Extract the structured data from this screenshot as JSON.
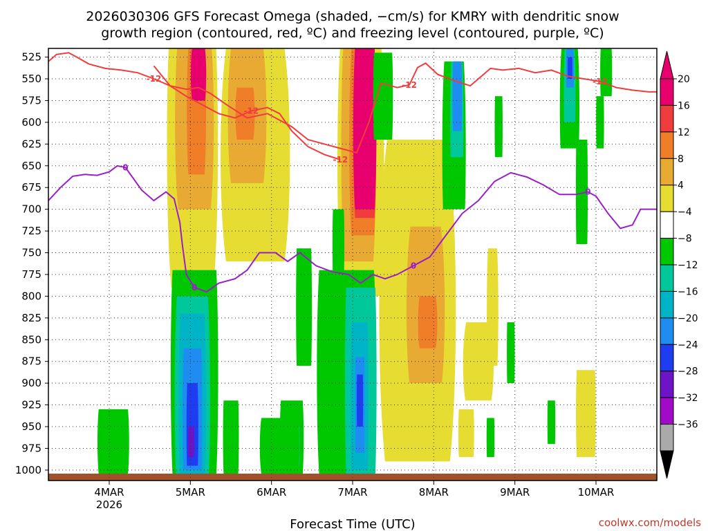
{
  "chart_data": {
    "type": "heatmap",
    "title_line1": "2026030306 GFS Forecast Omega (shaded, −cm/s) for KMRY with dendritic snow",
    "title_line2": "growth region (contoured, red, ºC) and freezing level (contoured, purple, ºC)",
    "xlabel": "Forecast Time (UTC)",
    "credit": "coolwx.com/models",
    "x_axis": {
      "unit": "days since 2026-03-03 06Z",
      "range": [
        0,
        7.5
      ],
      "ticks": [
        {
          "pos": 0.75,
          "label": "4MAR",
          "sublabel": "2026"
        },
        {
          "pos": 1.75,
          "label": "5MAR"
        },
        {
          "pos": 2.75,
          "label": "6MAR"
        },
        {
          "pos": 3.75,
          "label": "7MAR"
        },
        {
          "pos": 4.75,
          "label": "8MAR"
        },
        {
          "pos": 5.75,
          "label": "9MAR"
        },
        {
          "pos": 6.75,
          "label": "10MAR"
        }
      ]
    },
    "y_axis": {
      "unit": "hPa",
      "range": [
        515,
        1012
      ],
      "ticks": [
        525,
        550,
        575,
        600,
        625,
        650,
        675,
        700,
        725,
        750,
        775,
        800,
        825,
        850,
        875,
        900,
        925,
        950,
        975,
        1000
      ]
    },
    "colorbar": {
      "labels": [
        "20",
        "16",
        "12",
        "8",
        "4",
        "−4",
        "−8",
        "−12",
        "−16",
        "−20",
        "−24",
        "−28",
        "−32",
        "−36"
      ],
      "bins": [
        {
          "color": "#e8006f"
        },
        {
          "color": "#f03c3c"
        },
        {
          "color": "#f07e28"
        },
        {
          "color": "#e8aa32"
        },
        {
          "color": "#e6dc32"
        },
        {
          "color": "#ffffff"
        },
        {
          "color": "#00c800"
        },
        {
          "color": "#00c89b"
        },
        {
          "color": "#00b4c8"
        },
        {
          "color": "#1e8cf0"
        },
        {
          "color": "#1e3cf0"
        },
        {
          "color": "#6e14c8"
        },
        {
          "color": "#a00ac8"
        },
        {
          "color": "#aaaaaa"
        }
      ],
      "top_arrow_color": "#e8006f",
      "bottom_arrow_color": "#000000"
    },
    "freezing_level": {
      "color": "#9a1ec8",
      "label": "0",
      "points": [
        [
          0,
          690
        ],
        [
          0.15,
          675
        ],
        [
          0.3,
          662
        ],
        [
          0.45,
          660
        ],
        [
          0.6,
          661
        ],
        [
          0.75,
          657
        ],
        [
          0.85,
          650
        ],
        [
          0.95,
          652
        ],
        [
          1.05,
          665
        ],
        [
          1.15,
          678
        ],
        [
          1.3,
          690
        ],
        [
          1.45,
          680
        ],
        [
          1.55,
          688
        ],
        [
          1.62,
          715
        ],
        [
          1.65,
          740
        ],
        [
          1.7,
          775
        ],
        [
          1.8,
          790
        ],
        [
          1.95,
          795
        ],
        [
          2.1,
          785
        ],
        [
          2.3,
          780
        ],
        [
          2.45,
          770
        ],
        [
          2.6,
          750
        ],
        [
          2.8,
          750
        ],
        [
          2.95,
          760
        ],
        [
          3.1,
          750
        ],
        [
          3.3,
          765
        ],
        [
          3.5,
          772
        ],
        [
          3.7,
          775
        ],
        [
          3.85,
          785
        ],
        [
          4.0,
          775
        ],
        [
          4.15,
          780
        ],
        [
          4.3,
          775
        ],
        [
          4.5,
          765
        ],
        [
          4.7,
          755
        ],
        [
          4.9,
          730
        ],
        [
          5.1,
          705
        ],
        [
          5.3,
          690
        ],
        [
          5.5,
          668
        ],
        [
          5.7,
          658
        ],
        [
          5.9,
          663
        ],
        [
          6.1,
          672
        ],
        [
          6.3,
          683
        ],
        [
          6.5,
          683
        ],
        [
          6.65,
          680
        ],
        [
          6.75,
          685
        ],
        [
          6.9,
          705
        ],
        [
          7.05,
          722
        ],
        [
          7.2,
          718
        ],
        [
          7.3,
          700
        ],
        [
          7.5,
          700
        ]
      ]
    },
    "dgz_top": {
      "color": "#f03c3c",
      "label": "-12",
      "points": [
        [
          0,
          530
        ],
        [
          0.1,
          522
        ],
        [
          0.25,
          520
        ],
        [
          0.35,
          525
        ],
        [
          0.5,
          533
        ],
        [
          0.7,
          538
        ],
        [
          0.9,
          540
        ],
        [
          1.1,
          543
        ],
        [
          1.3,
          550
        ],
        [
          1.5,
          558
        ],
        [
          1.7,
          562
        ],
        [
          1.85,
          560
        ],
        [
          2.0,
          567
        ],
        [
          2.2,
          580
        ],
        [
          2.45,
          595
        ],
        [
          2.7,
          590
        ],
        [
          3.0,
          605
        ],
        [
          3.2,
          620
        ],
        [
          3.4,
          625
        ],
        [
          3.6,
          630
        ],
        [
          3.8,
          635
        ],
        [
          3.95,
          600
        ],
        [
          4.1,
          555
        ],
        [
          4.3,
          560
        ],
        [
          4.45,
          557
        ],
        [
          4.55,
          537
        ],
        [
          4.65,
          532
        ],
        [
          4.8,
          545
        ],
        [
          5.0,
          552
        ],
        [
          5.2,
          558
        ],
        [
          5.45,
          538
        ],
        [
          5.6,
          540
        ],
        [
          5.8,
          538
        ],
        [
          6.0,
          543
        ],
        [
          6.2,
          540
        ],
        [
          6.4,
          547
        ],
        [
          6.6,
          550
        ],
        [
          6.8,
          553
        ],
        [
          7.0,
          560
        ],
        [
          7.2,
          563
        ],
        [
          7.4,
          565
        ],
        [
          7.5,
          565
        ]
      ]
    },
    "dgz_bottom": {
      "color": "#f03c3c",
      "label": "-12",
      "points": [
        [
          1.3,
          535
        ],
        [
          1.5,
          558
        ],
        [
          1.7,
          570
        ],
        [
          1.9,
          580
        ],
        [
          2.1,
          590
        ],
        [
          2.3,
          595
        ],
        [
          2.5,
          587
        ],
        [
          2.7,
          583
        ],
        [
          2.85,
          590
        ],
        [
          3.0,
          610
        ],
        [
          3.2,
          628
        ],
        [
          3.4,
          637
        ],
        [
          3.6,
          643
        ]
      ]
    },
    "regions": [
      {
        "x": [
          1.45,
          2.1
        ],
        "p": [
          515,
          790
        ],
        "c": 4,
        "w": [
          0.9,
          0.8
        ]
      },
      {
        "x": [
          1.55,
          2.05
        ],
        "p": [
          515,
          700
        ],
        "c": 3,
        "w": [
          0.85,
          0.8
        ]
      },
      {
        "x": [
          1.7,
          1.95
        ],
        "p": [
          515,
          660
        ],
        "c": 2,
        "w": [
          0.8,
          0.8
        ]
      },
      {
        "x": [
          1.75,
          1.95
        ],
        "p": [
          515,
          575
        ],
        "c": 0,
        "w": [
          0.8,
          0.8
        ]
      },
      {
        "x": [
          2.1,
          3.0
        ],
        "p": [
          515,
          760
        ],
        "c": 4,
        "w": [
          0.8,
          0.8
        ]
      },
      {
        "x": [
          2.2,
          2.7
        ],
        "p": [
          515,
          670
        ],
        "c": 3,
        "w": [
          0.8,
          0.8
        ]
      },
      {
        "x": [
          2.3,
          2.55
        ],
        "p": [
          560,
          620
        ],
        "c": 2,
        "w": [
          0.8,
          0.8
        ]
      },
      {
        "x": [
          3.55,
          4.15
        ],
        "p": [
          515,
          800
        ],
        "c": 4,
        "w": [
          0.85,
          0.8
        ]
      },
      {
        "x": [
          3.6,
          4.05
        ],
        "p": [
          515,
          760
        ],
        "c": 3,
        "w": [
          0.85,
          0.8
        ]
      },
      {
        "x": [
          3.7,
          4.05
        ],
        "p": [
          515,
          730
        ],
        "c": 2,
        "w": [
          0.8,
          0.8
        ]
      },
      {
        "x": [
          3.75,
          4.05
        ],
        "p": [
          515,
          710
        ],
        "c": 1,
        "w": [
          0.8,
          0.8
        ]
      },
      {
        "x": [
          3.75,
          4.05
        ],
        "p": [
          515,
          700
        ],
        "c": 0,
        "w": [
          0.8,
          0.8
        ]
      },
      {
        "x": [
          3.8,
          4.0
        ],
        "p": [
          525,
          690
        ],
        "c": 0,
        "w": [
          0.9,
          0.9
        ]
      },
      {
        "x": [
          4.05,
          5.05
        ],
        "p": [
          620,
          990
        ],
        "c": 4,
        "w": [
          0.75,
          0.8
        ]
      },
      {
        "x": [
          4.4,
          4.9
        ],
        "p": [
          720,
          900
        ],
        "c": 3,
        "w": [
          0.75,
          0.8
        ]
      },
      {
        "x": [
          4.55,
          4.8
        ],
        "p": [
          800,
          860
        ],
        "c": 2,
        "w": [
          0.8,
          0.8
        ]
      },
      {
        "x": [
          5.1,
          5.5
        ],
        "p": [
          830,
          920
        ],
        "c": 4,
        "w": [
          0.75,
          0.8
        ]
      },
      {
        "x": [
          5.4,
          5.55
        ],
        "p": [
          745,
          880
        ],
        "c": 4,
        "w": [
          0.75,
          0.8
        ]
      },
      {
        "x": [
          6.5,
          6.75
        ],
        "p": [
          885,
          985
        ],
        "c": 4,
        "w": [
          0.9,
          0.9
        ]
      },
      {
        "x": [
          5.05,
          5.25
        ],
        "p": [
          930,
          985
        ],
        "c": 4,
        "w": [
          0.9,
          0.9
        ]
      },
      {
        "x": [
          1.5,
          2.1
        ],
        "p": [
          770,
          1005
        ],
        "c": 6,
        "w": [
          0.9,
          0.9
        ]
      },
      {
        "x": [
          1.55,
          2.0
        ],
        "p": [
          800,
          1005
        ],
        "c": 7,
        "w": [
          0.85,
          0.9
        ]
      },
      {
        "x": [
          1.6,
          1.95
        ],
        "p": [
          820,
          1005
        ],
        "c": 8,
        "w": [
          0.85,
          0.9
        ]
      },
      {
        "x": [
          1.65,
          1.9
        ],
        "p": [
          860,
          1000
        ],
        "c": 9,
        "w": [
          0.85,
          0.9
        ]
      },
      {
        "x": [
          1.7,
          1.85
        ],
        "p": [
          900,
          995
        ],
        "c": 10,
        "w": [
          0.85,
          0.9
        ]
      },
      {
        "x": [
          1.72,
          1.8
        ],
        "p": [
          950,
          985
        ],
        "c": 11,
        "w": [
          0.85,
          0.9
        ]
      },
      {
        "x": [
          3.3,
          4.05
        ],
        "p": [
          770,
          1005
        ],
        "c": 6,
        "w": [
          0.9,
          0.9
        ]
      },
      {
        "x": [
          3.65,
          4.05
        ],
        "p": [
          790,
          1005
        ],
        "c": 7,
        "w": [
          0.9,
          0.9
        ]
      },
      {
        "x": [
          3.72,
          3.95
        ],
        "p": [
          830,
          1000
        ],
        "c": 8,
        "w": [
          0.85,
          0.9
        ]
      },
      {
        "x": [
          3.78,
          3.9
        ],
        "p": [
          870,
          980
        ],
        "c": 9,
        "w": [
          0.9,
          0.9
        ]
      },
      {
        "x": [
          3.8,
          3.88
        ],
        "p": [
          890,
          950
        ],
        "c": 10,
        "w": [
          0.9,
          0.9
        ]
      },
      {
        "x": [
          2.15,
          2.35
        ],
        "p": [
          920,
          1005
        ],
        "c": 6,
        "w": [
          0.9,
          0.9
        ]
      },
      {
        "x": [
          2.85,
          3.15
        ],
        "p": [
          920,
          1005
        ],
        "c": 6,
        "w": [
          0.9,
          0.9
        ]
      },
      {
        "x": [
          2.95,
          3.1
        ],
        "p": [
          950,
          995
        ],
        "c": 7,
        "w": [
          0.9,
          0.9
        ]
      },
      {
        "x": [
          0.6,
          1.0
        ],
        "p": [
          930,
          1005
        ],
        "c": 6,
        "w": [
          0.9,
          0.9
        ]
      },
      {
        "x": [
          2.6,
          3.1
        ],
        "p": [
          940,
          1005
        ],
        "c": 6,
        "w": [
          0.9,
          0.9
        ]
      },
      {
        "x": [
          3.05,
          3.25
        ],
        "p": [
          745,
          880
        ],
        "c": 6,
        "w": [
          0.9,
          0.9
        ]
      },
      {
        "x": [
          4.85,
          5.15
        ],
        "p": [
          530,
          700
        ],
        "c": 6,
        "w": [
          0.8,
          0.9
        ]
      },
      {
        "x": [
          4.95,
          5.12
        ],
        "p": [
          530,
          640
        ],
        "c": 7,
        "w": [
          0.8,
          0.9
        ]
      },
      {
        "x": [
          4.98,
          5.1
        ],
        "p": [
          530,
          610
        ],
        "c": 9,
        "w": [
          0.85,
          0.9
        ]
      },
      {
        "x": [
          6.3,
          6.55
        ],
        "p": [
          515,
          630
        ],
        "c": 6,
        "w": [
          0.8,
          0.9
        ]
      },
      {
        "x": [
          6.35,
          6.5
        ],
        "p": [
          515,
          600
        ],
        "c": 7,
        "w": [
          0.8,
          0.9
        ]
      },
      {
        "x": [
          6.38,
          6.48
        ],
        "p": [
          515,
          560
        ],
        "c": 9,
        "w": [
          0.85,
          0.9
        ]
      },
      {
        "x": [
          6.4,
          6.46
        ],
        "p": [
          525,
          550
        ],
        "c": 10,
        "w": [
          0.9,
          0.9
        ]
      },
      {
        "x": [
          6.5,
          6.65
        ],
        "p": [
          620,
          740
        ],
        "c": 6,
        "w": [
          0.9,
          0.9
        ]
      },
      {
        "x": [
          6.8,
          6.95
        ],
        "p": [
          515,
          570
        ],
        "c": 6,
        "w": [
          0.9,
          0.9
        ]
      },
      {
        "x": [
          6.75,
          6.85
        ],
        "p": [
          570,
          630
        ],
        "c": 6,
        "w": [
          0.9,
          0.9
        ]
      },
      {
        "x": [
          5.5,
          5.6
        ],
        "p": [
          570,
          640
        ],
        "c": 6,
        "w": [
          0.9,
          0.9
        ]
      },
      {
        "x": [
          4.0,
          4.25
        ],
        "p": [
          520,
          620
        ],
        "c": 6,
        "w": [
          0.9,
          0.9
        ]
      },
      {
        "x": [
          3.5,
          3.65
        ],
        "p": [
          700,
          780
        ],
        "c": 6,
        "w": [
          0.9,
          0.9
        ]
      },
      {
        "x": [
          5.65,
          5.75
        ],
        "p": [
          830,
          900
        ],
        "c": 6,
        "w": [
          0.9,
          0.9
        ]
      },
      {
        "x": [
          5.4,
          5.5
        ],
        "p": [
          940,
          985
        ],
        "c": 6,
        "w": [
          0.9,
          0.9
        ]
      },
      {
        "x": [
          6.15,
          6.25
        ],
        "p": [
          920,
          970
        ],
        "c": 6,
        "w": [
          0.9,
          0.9
        ]
      }
    ]
  }
}
